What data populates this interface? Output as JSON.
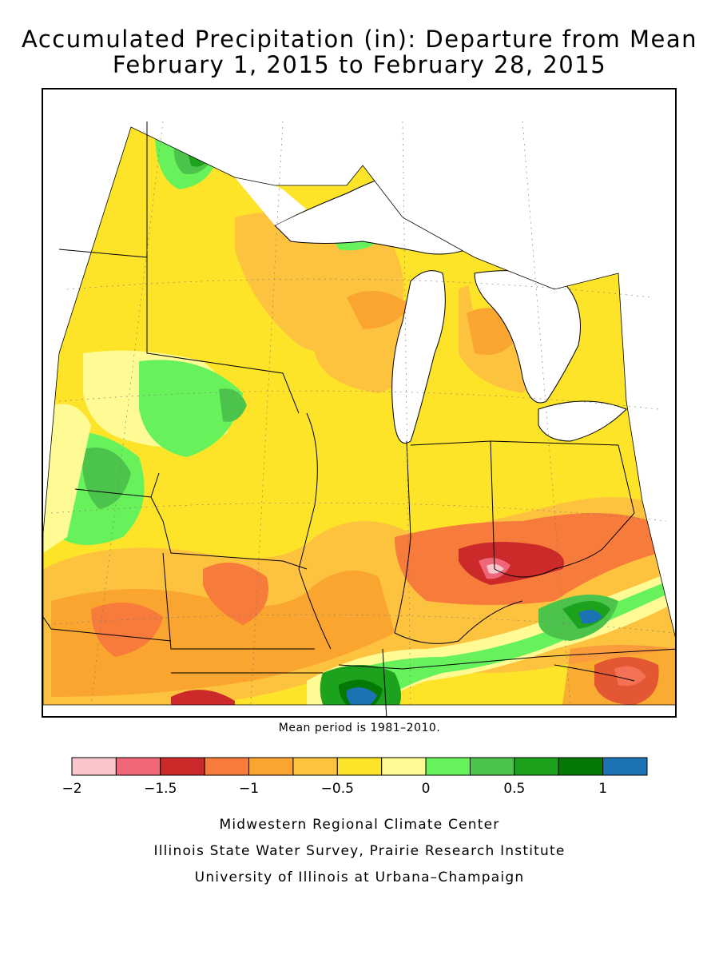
{
  "title": {
    "line1": "Accumulated Precipitation (in): Departure from Mean",
    "line2": "February 1, 2015 to February 28, 2015"
  },
  "footnote": "Mean period is 1981–2010.",
  "legend": {
    "colors": [
      "#f9c6cb",
      "#ee6677",
      "#cc2a2a",
      "#f77b3a",
      "#f9a530",
      "#fdc33e",
      "#fde429",
      "#fefb94",
      "#67f25c",
      "#4cc44c",
      "#1ca21c",
      "#067806",
      "#1b73b3"
    ],
    "tick_labels": [
      "−2",
      "−1.5",
      "−1",
      "−0.5",
      "0",
      "0.5",
      "1"
    ],
    "tick_values": [
      -2,
      -1.5,
      -1,
      -0.5,
      0,
      0.5,
      1
    ],
    "min": -2,
    "max": 1.25,
    "step": 0.25
  },
  "credits": [
    "Midwestern Regional Climate Center",
    "Illinois State Water Survey, Prairie Research Institute",
    "University of Illinois at Urbana–Champaign"
  ]
}
